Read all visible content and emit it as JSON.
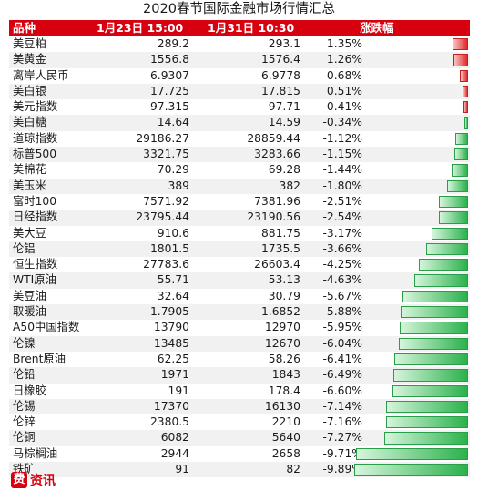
{
  "title": "2020春节国际金融市场行情汇总",
  "header": {
    "name": "品种",
    "date1": "1月23日 15:00",
    "date2": "1月31日 10:30",
    "change": "涨跌幅"
  },
  "colors": {
    "header_bg": "#d7000f",
    "up": "#e12a2a",
    "down": "#2bb24c"
  },
  "rows": [
    {
      "name": "美豆粕",
      "v1": "289.2",
      "v2": "293.1",
      "pct": "1.35%",
      "pct_value": 1.35
    },
    {
      "name": "美黄金",
      "v1": "1556.8",
      "v2": "1576.4",
      "pct": "1.26%",
      "pct_value": 1.26
    },
    {
      "name": "离岸人民币",
      "v1": "6.9307",
      "v2": "6.9778",
      "pct": "0.68%",
      "pct_value": 0.68
    },
    {
      "name": "美白银",
      "v1": "17.725",
      "v2": "17.815",
      "pct": "0.51%",
      "pct_value": 0.51
    },
    {
      "name": "美元指数",
      "v1": "97.315",
      "v2": "97.71",
      "pct": "0.41%",
      "pct_value": 0.41
    },
    {
      "name": "美白糖",
      "v1": "14.64",
      "v2": "14.59",
      "pct": "-0.34%",
      "pct_value": -0.34
    },
    {
      "name": "道琼指数",
      "v1": "29186.27",
      "v2": "28859.44",
      "pct": "-1.12%",
      "pct_value": -1.12
    },
    {
      "name": "标普500",
      "v1": "3321.75",
      "v2": "3283.66",
      "pct": "-1.15%",
      "pct_value": -1.15
    },
    {
      "name": "美棉花",
      "v1": "70.29",
      "v2": "69.28",
      "pct": "-1.44%",
      "pct_value": -1.44
    },
    {
      "name": "美玉米",
      "v1": "389",
      "v2": "382",
      "pct": "-1.80%",
      "pct_value": -1.8
    },
    {
      "name": "富时100",
      "v1": "7571.92",
      "v2": "7381.96",
      "pct": "-2.51%",
      "pct_value": -2.51
    },
    {
      "name": "日经指数",
      "v1": "23795.44",
      "v2": "23190.56",
      "pct": "-2.54%",
      "pct_value": -2.54
    },
    {
      "name": "美大豆",
      "v1": "910.6",
      "v2": "881.75",
      "pct": "-3.17%",
      "pct_value": -3.17
    },
    {
      "name": "伦铝",
      "v1": "1801.5",
      "v2": "1735.5",
      "pct": "-3.66%",
      "pct_value": -3.66
    },
    {
      "name": "恒生指数",
      "v1": "27783.6",
      "v2": "26603.4",
      "pct": "-4.25%",
      "pct_value": -4.25
    },
    {
      "name": "WTI原油",
      "v1": "55.71",
      "v2": "53.13",
      "pct": "-4.63%",
      "pct_value": -4.63
    },
    {
      "name": "美豆油",
      "v1": "32.64",
      "v2": "30.79",
      "pct": "-5.67%",
      "pct_value": -5.67
    },
    {
      "name": "取暖油",
      "v1": "1.7905",
      "v2": "1.6852",
      "pct": "-5.88%",
      "pct_value": -5.88
    },
    {
      "name": "A50中国指数",
      "v1": "13790",
      "v2": "12970",
      "pct": "-5.95%",
      "pct_value": -5.95
    },
    {
      "name": "伦镍",
      "v1": "13485",
      "v2": "12670",
      "pct": "-6.04%",
      "pct_value": -6.04
    },
    {
      "name": "Brent原油",
      "v1": "62.25",
      "v2": "58.26",
      "pct": "-6.41%",
      "pct_value": -6.41
    },
    {
      "name": "伦铅",
      "v1": "1971",
      "v2": "1843",
      "pct": "-6.49%",
      "pct_value": -6.49
    },
    {
      "name": "日橡胶",
      "v1": "191",
      "v2": "178.4",
      "pct": "-6.60%",
      "pct_value": -6.6
    },
    {
      "name": "伦锡",
      "v1": "17370",
      "v2": "16130",
      "pct": "-7.14%",
      "pct_value": -7.14
    },
    {
      "name": "伦锌",
      "v1": "2380.5",
      "v2": "2210",
      "pct": "-7.16%",
      "pct_value": -7.16
    },
    {
      "name": "伦铜",
      "v1": "6082",
      "v2": "5640",
      "pct": "-7.27%",
      "pct_value": -7.27
    },
    {
      "name": "马棕榈油",
      "v1": "2944",
      "v2": "2658",
      "pct": "-9.71%",
      "pct_value": -9.71
    },
    {
      "name": "铁矿",
      "v1": "91",
      "v2": "82",
      "pct": "-9.89%",
      "pct_value": -9.89
    }
  ],
  "logo": {
    "mark": "费",
    "word": "资讯"
  }
}
